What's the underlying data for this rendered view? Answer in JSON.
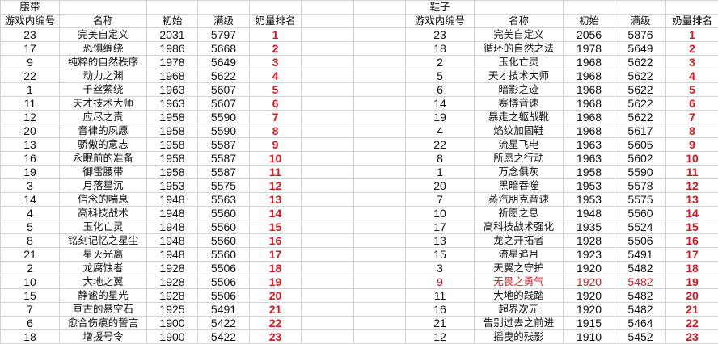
{
  "colors": {
    "rank": "#e0141e",
    "highlight": "#e0141e",
    "grid": "#d4d4d4"
  },
  "left": {
    "title": "腰带",
    "headers": [
      "游戏内编号",
      "名称",
      "初始",
      "满级",
      "奶量排名"
    ],
    "rows": [
      [
        "23",
        "完美自定义",
        "2031",
        "5797",
        "1"
      ],
      [
        "17",
        "恐惧缠绕",
        "1986",
        "5668",
        "2"
      ],
      [
        "9",
        "纯粹的自然秩序",
        "1978",
        "5649",
        "3"
      ],
      [
        "22",
        "动力之渊",
        "1968",
        "5622",
        "4"
      ],
      [
        "1",
        "千丝萦绕",
        "1963",
        "5607",
        "5"
      ],
      [
        "11",
        "天才技术大师",
        "1963",
        "5607",
        "6"
      ],
      [
        "12",
        "应尽之责",
        "1958",
        "5590",
        "7"
      ],
      [
        "20",
        "音律的夙愿",
        "1958",
        "5590",
        "8"
      ],
      [
        "13",
        "骄傲的意志",
        "1958",
        "5587",
        "9"
      ],
      [
        "16",
        "永眠前的准备",
        "1958",
        "5587",
        "10"
      ],
      [
        "19",
        "御雷腰带",
        "1958",
        "5587",
        "11"
      ],
      [
        "3",
        "月落星沉",
        "1953",
        "5575",
        "12"
      ],
      [
        "14",
        "信念的喘息",
        "1948",
        "5563",
        "13"
      ],
      [
        "4",
        "高科技战术",
        "1948",
        "5560",
        "14"
      ],
      [
        "5",
        "玉化亡灵",
        "1948",
        "5560",
        "15"
      ],
      [
        "8",
        "铭刻记忆之星尘",
        "1948",
        "5560",
        "16"
      ],
      [
        "21",
        "星灭光离",
        "1948",
        "5560",
        "17"
      ],
      [
        "2",
        "龙腐蚀者",
        "1928",
        "5506",
        "18"
      ],
      [
        "10",
        "大地之翼",
        "1928",
        "5506",
        "19"
      ],
      [
        "15",
        "静谧的星光",
        "1928",
        "5506",
        "20"
      ],
      [
        "7",
        "亘古的悬空石",
        "1925",
        "5491",
        "21"
      ],
      [
        "6",
        "愈合伤痕的誓言",
        "1900",
        "5422",
        "22"
      ],
      [
        "18",
        "增援号令",
        "1900",
        "5422",
        "23"
      ]
    ]
  },
  "right": {
    "title": "鞋子",
    "headers": [
      "游戏内编号",
      "名称",
      "初始",
      "满级",
      "奶量排名"
    ],
    "highlight_row": 18,
    "rows": [
      [
        "23",
        "完美自定义",
        "2056",
        "5876",
        "1"
      ],
      [
        "18",
        "循环的自然之法",
        "1978",
        "5649",
        "2"
      ],
      [
        "2",
        "玉化亡灵",
        "1968",
        "5622",
        "3"
      ],
      [
        "5",
        "天才技术大师",
        "1968",
        "5622",
        "4"
      ],
      [
        "6",
        "暗影之迹",
        "1968",
        "5622",
        "5"
      ],
      [
        "14",
        "赛博音速",
        "1968",
        "5622",
        "6"
      ],
      [
        "19",
        "暴走之躯战靴",
        "1968",
        "5622",
        "7"
      ],
      [
        "4",
        "焰纹加固鞋",
        "1968",
        "5617",
        "8"
      ],
      [
        "22",
        "流星飞电",
        "1963",
        "5605",
        "9"
      ],
      [
        "8",
        "所愿之行动",
        "1963",
        "5602",
        "10"
      ],
      [
        "1",
        "万念俱灰",
        "1958",
        "5590",
        "11"
      ],
      [
        "20",
        "黑暗吞噬",
        "1953",
        "5578",
        "12"
      ],
      [
        "7",
        "蒸汽朋克音速",
        "1953",
        "5575",
        "13"
      ],
      [
        "10",
        "祈愿之息",
        "1948",
        "5560",
        "14"
      ],
      [
        "17",
        "高科技战术强化",
        "1935",
        "5524",
        "15"
      ],
      [
        "13",
        "龙之开拓者",
        "1928",
        "5506",
        "16"
      ],
      [
        "15",
        "流星追月",
        "1923",
        "5491",
        "17"
      ],
      [
        "3",
        "天翼之守护",
        "1920",
        "5482",
        "18"
      ],
      [
        "9",
        "无畏之勇气",
        "1920",
        "5482",
        "19"
      ],
      [
        "11",
        "大地的践踏",
        "1920",
        "5482",
        "20"
      ],
      [
        "16",
        "超界次元",
        "1920",
        "5482",
        "21"
      ],
      [
        "21",
        "告别过去之前进",
        "1915",
        "5464",
        "22"
      ],
      [
        "12",
        "摇曳的残影",
        "1910",
        "5452",
        "23"
      ]
    ]
  }
}
